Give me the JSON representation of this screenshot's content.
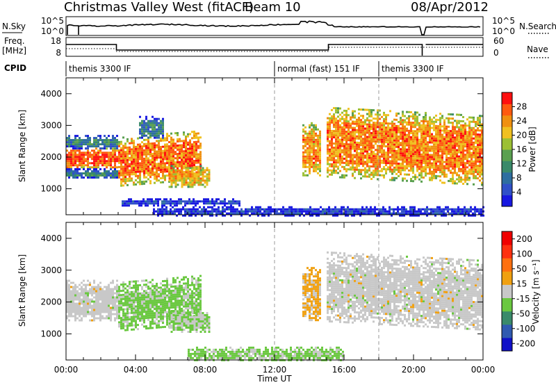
{
  "header": {
    "station": "Christmas Valley West (fitACF)",
    "beam": "Beam 10",
    "date": "08/Apr/2012"
  },
  "status_panels": {
    "nsky": {
      "label": "N.Sky",
      "right_label": "N.Search",
      "ticks": [
        "10^5",
        "10^0"
      ]
    },
    "freq": {
      "label_line1": "Freq.",
      "label_line2": "[MHz]",
      "ticks": [
        "18",
        "8"
      ],
      "right_label": "Nave",
      "right_ticks": [
        "60",
        "0"
      ]
    },
    "cpid": {
      "label": "CPID",
      "modes": [
        {
          "name": "themis 3300 IF",
          "start_hour": 0
        },
        {
          "name": "normal (fast) 151 IF",
          "start_hour": 12.0
        },
        {
          "name": "themis 3300 IF",
          "start_hour": 18.0
        }
      ]
    }
  },
  "chart_data": [
    {
      "type": "heatmap",
      "panel": "power",
      "ylabel": "Slant Range [km]",
      "ylim": [
        180,
        4500
      ],
      "yticks": [
        1000,
        2000,
        3000,
        4000
      ],
      "xlim": [
        0,
        24
      ],
      "colorbar": {
        "label": "Power [dB]",
        "range": [
          0,
          32
        ],
        "tick_labels": [
          "4",
          "8",
          "12",
          "16",
          "20",
          "24",
          "28"
        ],
        "colors": [
          "#1818e0",
          "#3050c8",
          "#2e6ea0",
          "#3a8a6a",
          "#5aa050",
          "#9cc034",
          "#f0c020",
          "#f09010",
          "#ff5a10",
          "#ff1010"
        ]
      },
      "regions": [
        {
          "t0": 0.0,
          "t1": 2.9,
          "r0": 1650,
          "r1": 2300,
          "level": 28
        },
        {
          "t0": 0.0,
          "t1": 2.9,
          "r0": 2300,
          "r1": 2700,
          "level": 10
        },
        {
          "t0": 0.0,
          "t1": 2.9,
          "r0": 1350,
          "r1": 1650,
          "level": 9
        },
        {
          "t0": 3.0,
          "t1": 7.8,
          "r0": 1150,
          "r1": 2700,
          "level": 26,
          "slope": 1
        },
        {
          "t0": 5.9,
          "t1": 8.2,
          "r0": 1050,
          "r1": 1750,
          "level": 22
        },
        {
          "t0": 4.2,
          "t1": 5.6,
          "r0": 2600,
          "r1": 3300,
          "level": 10
        },
        {
          "t0": 3.2,
          "t1": 10.0,
          "r0": 500,
          "r1": 700,
          "level": 4
        },
        {
          "t0": 13.6,
          "t1": 14.6,
          "r0": 1400,
          "r1": 3100,
          "level": 24
        },
        {
          "t0": 15.0,
          "t1": 24.0,
          "r0": 1300,
          "r1": 3500,
          "level": 25,
          "slope": -1
        },
        {
          "t0": 5.0,
          "t1": 24.0,
          "r0": 180,
          "r1": 450,
          "level": 3
        }
      ]
    },
    {
      "type": "heatmap",
      "panel": "velocity",
      "ylabel": "Slant Range [km]",
      "ylim": [
        180,
        4500
      ],
      "yticks": [
        1000,
        2000,
        3000,
        4000
      ],
      "xlim": [
        0,
        24
      ],
      "xlabel": "Time UT",
      "xtick_labels": [
        "00:00",
        "04:00",
        "08:00",
        "12:00",
        "16:00",
        "20:00",
        "00:00"
      ],
      "colorbar": {
        "label": "Velocity [m s⁻¹]",
        "range": [
          -250,
          250
        ],
        "tick_labels": [
          "200",
          "100",
          "50",
          "15",
          "-15",
          "-50",
          "-100",
          "-200"
        ],
        "colors": [
          "#1010c8",
          "#305ab0",
          "#3a8a6a",
          "#6ac840",
          "#c8c8c8",
          "#f0a010",
          "#ff7010",
          "#ff3010",
          "#f00000"
        ]
      },
      "regions": [
        {
          "t0": 0.0,
          "t1": 2.9,
          "r0": 1400,
          "r1": 2700,
          "level": 0
        },
        {
          "t0": 3.0,
          "t1": 7.8,
          "r0": 1150,
          "r1": 2700,
          "level": -40,
          "slope": 1
        },
        {
          "t0": 5.9,
          "t1": 8.2,
          "r0": 1050,
          "r1": 1750,
          "level": -30
        },
        {
          "t0": 13.6,
          "t1": 14.6,
          "r0": 1400,
          "r1": 3100,
          "level": 40
        },
        {
          "t0": 15.0,
          "t1": 24.0,
          "r0": 1300,
          "r1": 3500,
          "level": 0,
          "slope": -1
        },
        {
          "t0": 7.0,
          "t1": 16.0,
          "r0": 180,
          "r1": 600,
          "level": -40
        }
      ]
    }
  ]
}
